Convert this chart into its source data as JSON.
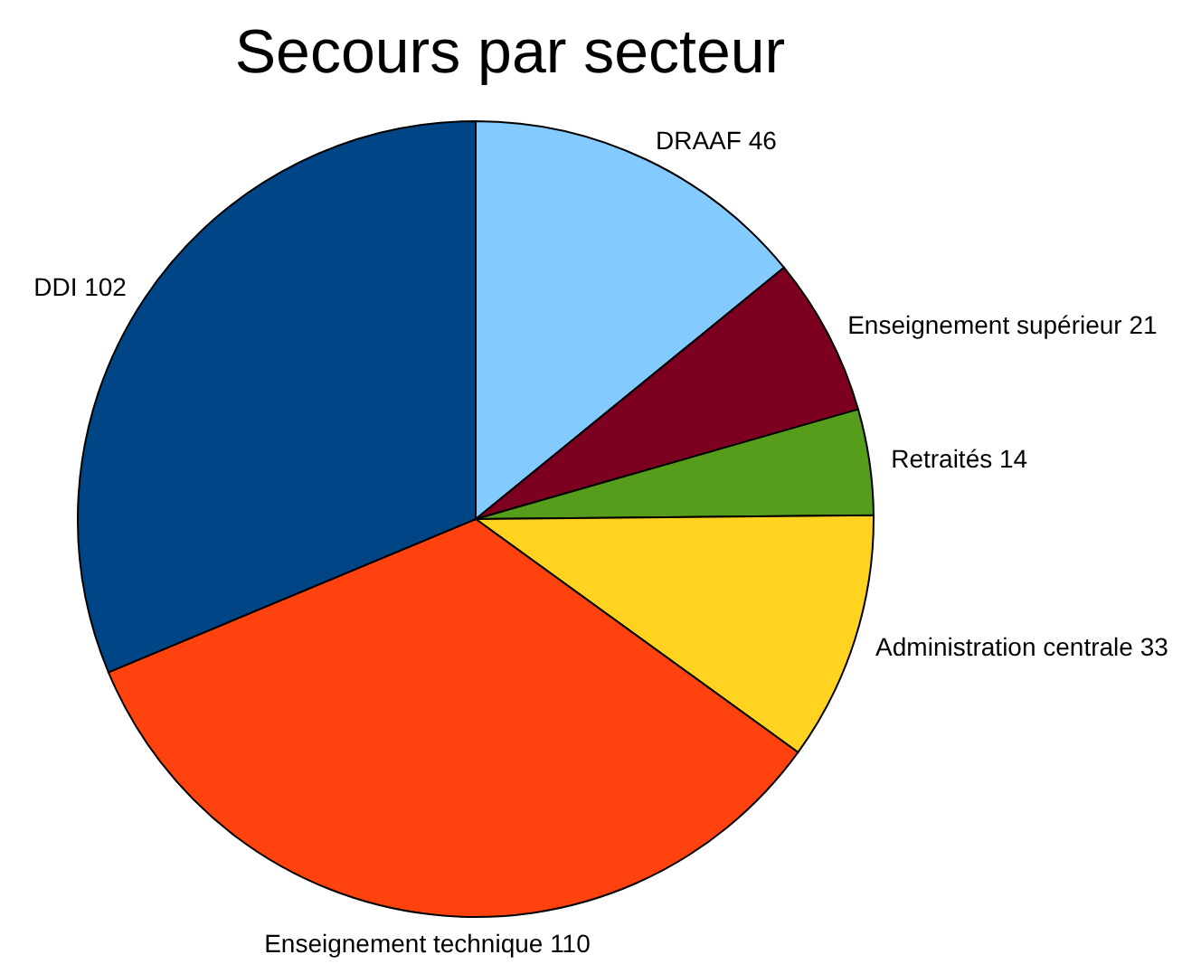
{
  "chart_data": {
    "type": "pie",
    "title": "Secours par secteur",
    "categories": [
      "DRAAF",
      "Enseignement supérieur",
      "Retraités",
      "Administration centrale",
      "Enseignement technique",
      "DDI"
    ],
    "values": [
      46,
      21,
      14,
      33,
      110,
      102
    ],
    "colors": [
      "#83caff",
      "#7e0021",
      "#579d1c",
      "#ffd320",
      "#ff420e",
      "#004586"
    ],
    "data_labels": true
  }
}
